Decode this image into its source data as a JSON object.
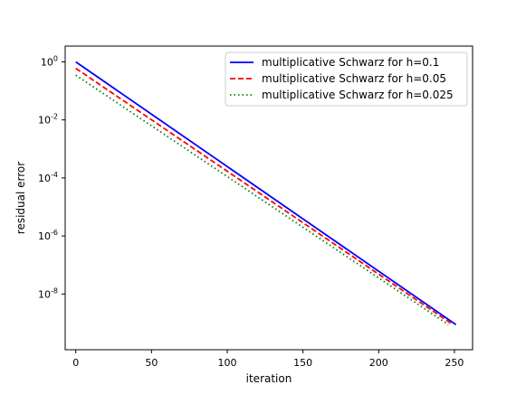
{
  "chart_data": {
    "type": "line",
    "title": "",
    "xlabel": "iteration",
    "ylabel": "residual error",
    "xlim": [
      -7,
      262
    ],
    "ylim": [
      1.2e-10,
      3.5
    ],
    "yscale": "log",
    "grid": false,
    "legend_position": "top-right",
    "x_ticks": [
      0,
      50,
      100,
      150,
      200,
      250
    ],
    "x_tick_labels": [
      "0",
      "50",
      "100",
      "150",
      "200",
      "250"
    ],
    "y_ticks": [
      1,
      0.01,
      0.0001,
      1e-06,
      1e-08
    ],
    "y_tick_labels": [
      {
        "base": "10",
        "exp": "0"
      },
      {
        "base": "10",
        "exp": "-2"
      },
      {
        "base": "10",
        "exp": "-4"
      },
      {
        "base": "10",
        "exp": "-6"
      },
      {
        "base": "10",
        "exp": "-8"
      }
    ],
    "series": [
      {
        "name": "multiplicative Schwarz for h=0.1",
        "color": "#0000ff",
        "style": "solid",
        "x": [
          0,
          251
        ],
        "y": [
          1.0,
          8.8e-10
        ]
      },
      {
        "name": "multiplicative Schwarz for h=0.05",
        "color": "#ff0000",
        "style": "dashed",
        "x": [
          0,
          249
        ],
        "y": [
          0.6,
          8.8e-10
        ]
      },
      {
        "name": "multiplicative Schwarz for h=0.025",
        "color": "#008000",
        "style": "dotted",
        "x": [
          0,
          246
        ],
        "y": [
          0.35,
          8.8e-10
        ]
      }
    ]
  }
}
